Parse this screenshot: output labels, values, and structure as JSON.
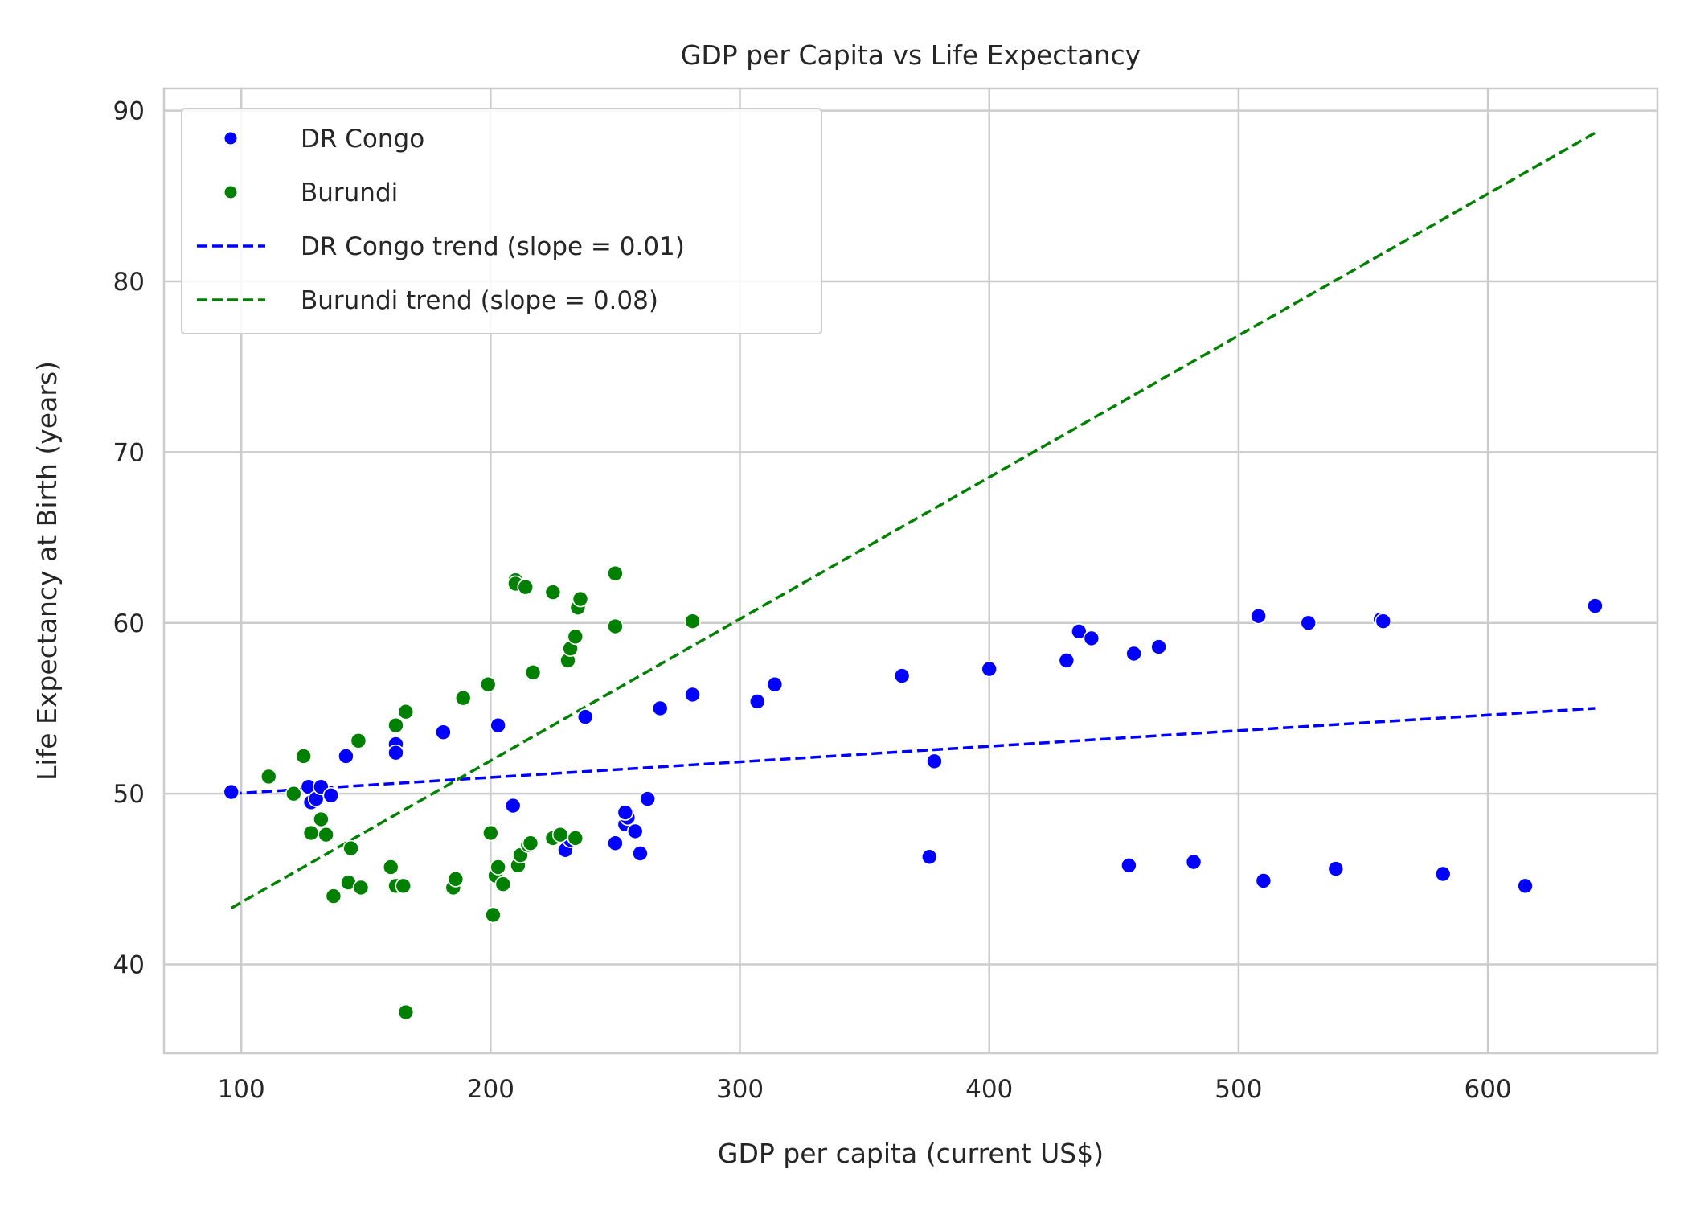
{
  "chart_data": {
    "type": "scatter",
    "title": "GDP per Capita vs Life Expectancy",
    "xlabel": "GDP per capita (current US$)",
    "ylabel": "Life Expectancy at Birth (years)",
    "xlim": [
      69,
      668
    ],
    "ylim": [
      34.8,
      91.3
    ],
    "xticks": [
      100,
      200,
      300,
      400,
      500,
      600
    ],
    "yticks": [
      40,
      50,
      60,
      70,
      80,
      90
    ],
    "grid": true,
    "legend_position": "top-left",
    "series": [
      {
        "name": "DR Congo",
        "kind": "scatter",
        "color": "#0000ff",
        "points": [
          [
            96,
            50.1
          ],
          [
            127,
            50.4
          ],
          [
            128,
            49.5
          ],
          [
            130,
            49.7
          ],
          [
            132,
            50.4
          ],
          [
            136,
            49.9
          ],
          [
            142,
            52.2
          ],
          [
            162,
            52.9
          ],
          [
            162,
            52.4
          ],
          [
            181,
            53.6
          ],
          [
            203,
            54.0
          ],
          [
            209,
            49.3
          ],
          [
            230,
            46.7
          ],
          [
            232,
            47.3
          ],
          [
            238,
            54.5
          ],
          [
            250,
            47.1
          ],
          [
            254,
            48.2
          ],
          [
            255,
            48.6
          ],
          [
            254,
            48.9
          ],
          [
            258,
            47.8
          ],
          [
            260,
            46.5
          ],
          [
            263,
            49.7
          ],
          [
            268,
            55.0
          ],
          [
            281,
            55.8
          ],
          [
            307,
            55.4
          ],
          [
            314,
            56.4
          ],
          [
            365,
            56.9
          ],
          [
            376,
            46.3
          ],
          [
            378,
            51.9
          ],
          [
            400,
            57.3
          ],
          [
            431,
            57.8
          ],
          [
            436,
            59.5
          ],
          [
            441,
            59.1
          ],
          [
            456,
            45.8
          ],
          [
            458,
            58.2
          ],
          [
            468,
            58.6
          ],
          [
            482,
            46.0
          ],
          [
            508,
            60.4
          ],
          [
            510,
            44.9
          ],
          [
            528,
            60.0
          ],
          [
            539,
            45.6
          ],
          [
            557,
            60.2
          ],
          [
            558,
            60.1
          ],
          [
            582,
            45.3
          ],
          [
            615,
            44.6
          ],
          [
            643,
            61.0
          ]
        ]
      },
      {
        "name": "Burundi",
        "kind": "scatter",
        "color": "#008000",
        "points": [
          [
            111,
            51.0
          ],
          [
            121,
            50.0
          ],
          [
            125,
            52.2
          ],
          [
            128,
            47.7
          ],
          [
            132,
            48.5
          ],
          [
            134,
            47.6
          ],
          [
            137,
            44.0
          ],
          [
            143,
            44.8
          ],
          [
            144,
            46.8
          ],
          [
            147,
            53.1
          ],
          [
            148,
            44.5
          ],
          [
            160,
            45.7
          ],
          [
            162,
            54.0
          ],
          [
            162,
            44.6
          ],
          [
            165,
            44.6
          ],
          [
            166,
            54.8
          ],
          [
            166,
            37.2
          ],
          [
            185,
            44.5
          ],
          [
            186,
            45.0
          ],
          [
            189,
            55.6
          ],
          [
            199,
            56.4
          ],
          [
            200,
            47.7
          ],
          [
            201,
            42.9
          ],
          [
            202,
            45.2
          ],
          [
            203,
            45.7
          ],
          [
            205,
            44.7
          ],
          [
            210,
            62.5
          ],
          [
            210,
            62.3
          ],
          [
            211,
            45.8
          ],
          [
            212,
            46.4
          ],
          [
            214,
            62.1
          ],
          [
            215,
            47.0
          ],
          [
            216,
            47.1
          ],
          [
            217,
            57.1
          ],
          [
            225,
            61.8
          ],
          [
            225,
            47.4
          ],
          [
            228,
            47.6
          ],
          [
            231,
            57.8
          ],
          [
            232,
            58.5
          ],
          [
            234,
            59.2
          ],
          [
            234,
            47.4
          ],
          [
            235,
            60.9
          ],
          [
            236,
            61.4
          ],
          [
            250,
            62.9
          ],
          [
            250,
            59.8
          ],
          [
            281,
            60.1
          ]
        ]
      },
      {
        "name": "DR Congo trend (slope = 0.01)",
        "kind": "line",
        "style": "dashed",
        "color": "#0000ff",
        "points": [
          [
            96,
            50.0
          ],
          [
            643,
            55.0
          ]
        ]
      },
      {
        "name": "Burundi trend (slope = 0.08)",
        "kind": "line",
        "style": "dashed",
        "color": "#008000",
        "points": [
          [
            96,
            43.3
          ],
          [
            643,
            88.7
          ]
        ]
      }
    ]
  }
}
